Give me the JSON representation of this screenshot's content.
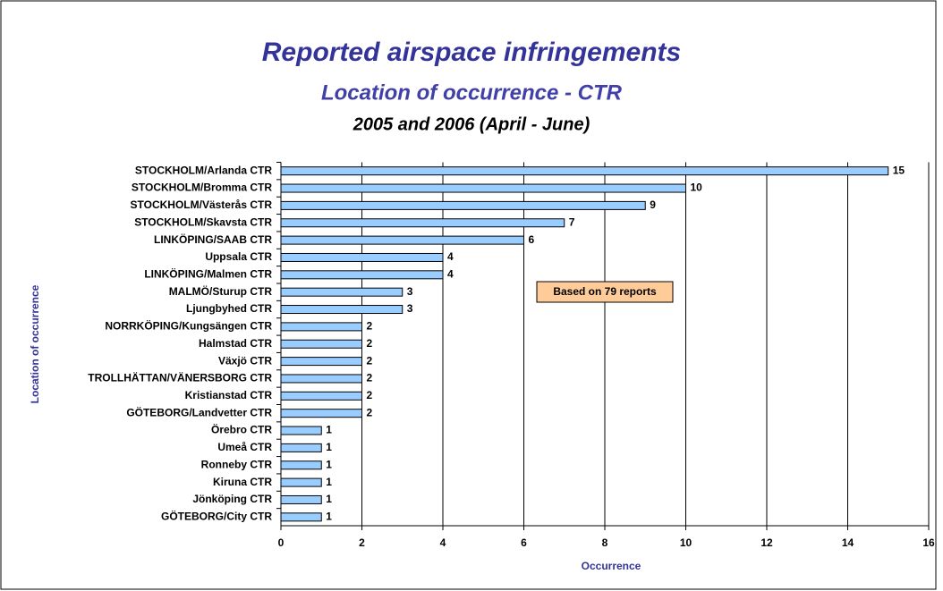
{
  "chart_data": {
    "type": "bar",
    "orientation": "horizontal",
    "title": "Reported airspace infringements",
    "subtitle": "Location of occurrence - CTR",
    "period": "2005 and 2006 (April - June)",
    "x_label": "Occurrence",
    "y_label": "Location of occurrence",
    "annotation": "Based on 79 reports",
    "categories": [
      "STOCKHOLM/Arlanda CTR",
      "STOCKHOLM/Bromma CTR",
      "STOCKHOLM/Västerås CTR",
      "STOCKHOLM/Skavsta CTR",
      "LINKÖPING/SAAB CTR",
      "Uppsala CTR",
      "LINKÖPING/Malmen CTR",
      "MALMÖ/Sturup CTR",
      "Ljungbyhed CTR",
      "NORRKÖPING/Kungsängen CTR",
      "Halmstad CTR",
      "Växjö CTR",
      "TROLLHÄTTAN/VÄNERSBORG CTR",
      "Kristianstad CTR",
      "GÖTEBORG/Landvetter CTR",
      "Örebro CTR",
      "Umeå CTR",
      "Ronneby CTR",
      "Kiruna CTR",
      "Jönköping CTR",
      "GÖTEBORG/City CTR"
    ],
    "values": [
      15,
      10,
      9,
      7,
      6,
      4,
      4,
      3,
      3,
      2,
      2,
      2,
      2,
      2,
      2,
      1,
      1,
      1,
      1,
      1,
      1
    ],
    "color": "#99ccff",
    "xlim": [
      0,
      16
    ],
    "xticks": [
      0,
      2,
      4,
      6,
      8,
      10,
      12,
      14,
      16
    ],
    "grid": true
  }
}
